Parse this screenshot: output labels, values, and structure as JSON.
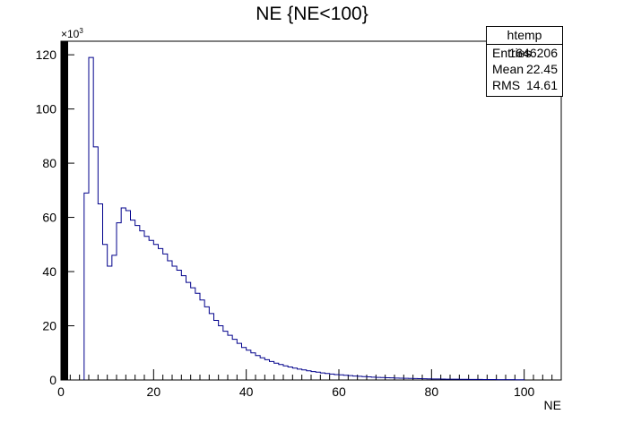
{
  "chart_data": {
    "type": "histogram",
    "title": "NE {NE<100}",
    "xlabel": "NE",
    "ylabel": "",
    "y_multiplier": "×10",
    "y_multiplier_exp": "3",
    "xlim": [
      0,
      108
    ],
    "ylim": [
      0,
      125000
    ],
    "x_ticks": [
      0,
      20,
      40,
      60,
      80,
      100
    ],
    "y_ticks": [
      0,
      20,
      40,
      60,
      80,
      100,
      120
    ],
    "bin_width": 1,
    "bins": [
      {
        "x": 5,
        "y": 69000
      },
      {
        "x": 6,
        "y": 119000
      },
      {
        "x": 7,
        "y": 86000
      },
      {
        "x": 8,
        "y": 65000
      },
      {
        "x": 9,
        "y": 50000
      },
      {
        "x": 10,
        "y": 42000
      },
      {
        "x": 11,
        "y": 46000
      },
      {
        "x": 12,
        "y": 58000
      },
      {
        "x": 13,
        "y": 63500
      },
      {
        "x": 14,
        "y": 62500
      },
      {
        "x": 15,
        "y": 59000
      },
      {
        "x": 16,
        "y": 57000
      },
      {
        "x": 17,
        "y": 55000
      },
      {
        "x": 18,
        "y": 53000
      },
      {
        "x": 19,
        "y": 51500
      },
      {
        "x": 20,
        "y": 50000
      },
      {
        "x": 21,
        "y": 48500
      },
      {
        "x": 22,
        "y": 46500
      },
      {
        "x": 23,
        "y": 44000
      },
      {
        "x": 24,
        "y": 42000
      },
      {
        "x": 25,
        "y": 40500
      },
      {
        "x": 26,
        "y": 38500
      },
      {
        "x": 27,
        "y": 36000
      },
      {
        "x": 28,
        "y": 34000
      },
      {
        "x": 29,
        "y": 32000
      },
      {
        "x": 30,
        "y": 29500
      },
      {
        "x": 31,
        "y": 27000
      },
      {
        "x": 32,
        "y": 24500
      },
      {
        "x": 33,
        "y": 22000
      },
      {
        "x": 34,
        "y": 20000
      },
      {
        "x": 35,
        "y": 18000
      },
      {
        "x": 36,
        "y": 16500
      },
      {
        "x": 37,
        "y": 15000
      },
      {
        "x": 38,
        "y": 13500
      },
      {
        "x": 39,
        "y": 12000
      },
      {
        "x": 40,
        "y": 11000
      },
      {
        "x": 41,
        "y": 10000
      },
      {
        "x": 42,
        "y": 9000
      },
      {
        "x": 43,
        "y": 8200
      },
      {
        "x": 44,
        "y": 7500
      },
      {
        "x": 45,
        "y": 6800
      },
      {
        "x": 46,
        "y": 6200
      },
      {
        "x": 47,
        "y": 5700
      },
      {
        "x": 48,
        "y": 5200
      },
      {
        "x": 49,
        "y": 4800
      },
      {
        "x": 50,
        "y": 4400
      },
      {
        "x": 51,
        "y": 4000
      },
      {
        "x": 52,
        "y": 3700
      },
      {
        "x": 53,
        "y": 3400
      },
      {
        "x": 54,
        "y": 3100
      },
      {
        "x": 55,
        "y": 2900
      },
      {
        "x": 56,
        "y": 2600
      },
      {
        "x": 57,
        "y": 2400
      },
      {
        "x": 58,
        "y": 2200
      },
      {
        "x": 59,
        "y": 2000
      },
      {
        "x": 60,
        "y": 1900
      },
      {
        "x": 61,
        "y": 1750
      },
      {
        "x": 62,
        "y": 1600
      },
      {
        "x": 63,
        "y": 1450
      },
      {
        "x": 64,
        "y": 1350
      },
      {
        "x": 65,
        "y": 1250
      },
      {
        "x": 66,
        "y": 1150
      },
      {
        "x": 67,
        "y": 1050
      },
      {
        "x": 68,
        "y": 970
      },
      {
        "x": 69,
        "y": 900
      },
      {
        "x": 70,
        "y": 830
      },
      {
        "x": 71,
        "y": 770
      },
      {
        "x": 72,
        "y": 710
      },
      {
        "x": 73,
        "y": 660
      },
      {
        "x": 74,
        "y": 610
      },
      {
        "x": 75,
        "y": 570
      },
      {
        "x": 76,
        "y": 530
      },
      {
        "x": 77,
        "y": 490
      },
      {
        "x": 78,
        "y": 450
      },
      {
        "x": 79,
        "y": 420
      },
      {
        "x": 80,
        "y": 390
      },
      {
        "x": 81,
        "y": 360
      },
      {
        "x": 82,
        "y": 340
      },
      {
        "x": 83,
        "y": 310
      },
      {
        "x": 84,
        "y": 290
      },
      {
        "x": 85,
        "y": 270
      },
      {
        "x": 86,
        "y": 250
      },
      {
        "x": 87,
        "y": 230
      },
      {
        "x": 88,
        "y": 220
      },
      {
        "x": 89,
        "y": 200
      },
      {
        "x": 90,
        "y": 190
      },
      {
        "x": 91,
        "y": 175
      },
      {
        "x": 92,
        "y": 160
      },
      {
        "x": 93,
        "y": 150
      },
      {
        "x": 94,
        "y": 140
      },
      {
        "x": 95,
        "y": 130
      },
      {
        "x": 96,
        "y": 120
      },
      {
        "x": 97,
        "y": 110
      },
      {
        "x": 98,
        "y": 100
      },
      {
        "x": 99,
        "y": 95
      }
    ],
    "line_color": "#00008b",
    "grid": false,
    "legend": "none"
  },
  "stats_box": {
    "title": "htemp",
    "entries_label": "Entries",
    "entries_value": "1646206",
    "mean_label": "Mean",
    "mean_value": "22.45",
    "rms_label": "RMS",
    "rms_value": "14.61"
  }
}
